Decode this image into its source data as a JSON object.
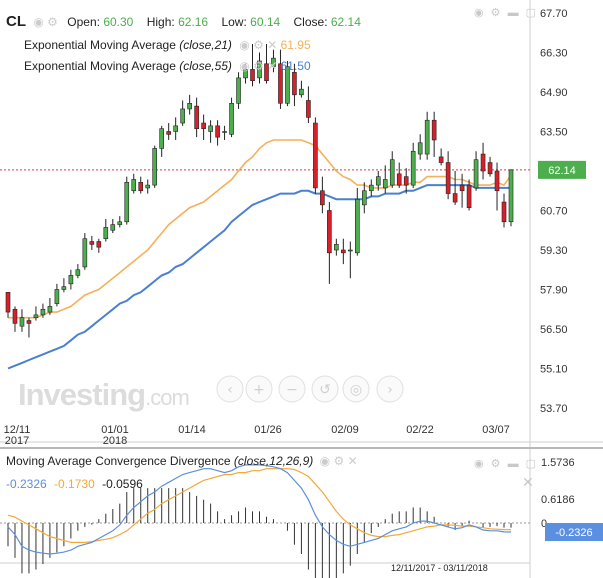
{
  "header": {
    "symbol": "CL",
    "open_label": "Open:",
    "open_value": "60.30",
    "high_label": "High:",
    "high_value": "62.16",
    "low_label": "Low:",
    "low_value": "60.14",
    "close_label": "Close:",
    "close_value": "62.14",
    "ema21_label": "Exponential Moving Average",
    "ema21_params": "(close,21)",
    "ema21_value": "61.95",
    "ema55_label": "Exponential Moving Average",
    "ema55_params": "(close,55)",
    "ema55_value": "61.50"
  },
  "macd_header": {
    "label": "Moving Average Convergence Divergence",
    "params": "(close,12,26,9)",
    "v1": "-0.2326",
    "v2": "-0.1730",
    "v3": "-0.0596",
    "current": "-0.2326"
  },
  "date_range": "12/11/2017 - 03/11/2018",
  "logo": {
    "main": "Investing",
    "suffix": ".com"
  },
  "colors": {
    "up": "#4cae4c",
    "down": "#d9202a",
    "ema21": "#f6b05a",
    "ema55": "#4a80d0",
    "macd_line": "#5b8fe0",
    "signal_line": "#f4a83a",
    "price_label": "#4cae4c",
    "current_line": "#e03b3b"
  },
  "chart_data": {
    "type": "candlestick",
    "price_axis": {
      "ticks": [
        "67.70",
        "66.30",
        "64.90",
        "63.50",
        "62.14",
        "60.70",
        "59.30",
        "57.90",
        "56.50",
        "55.10",
        "53.70"
      ],
      "current": "62.14"
    },
    "date_ticks": [
      {
        "label": "12/11",
        "sub": "2017"
      },
      {
        "label": "01/01",
        "sub": "2018"
      },
      {
        "label": "01/14",
        "sub": ""
      },
      {
        "label": "01/26",
        "sub": ""
      },
      {
        "label": "02/09",
        "sub": ""
      },
      {
        "label": "02/22",
        "sub": ""
      },
      {
        "label": "03/07",
        "sub": ""
      }
    ],
    "candles": [
      [
        57.8,
        57.1,
        57.8,
        56.9
      ],
      [
        57.2,
        56.7,
        57.3,
        56.4
      ],
      [
        56.6,
        56.9,
        57.2,
        56.4
      ],
      [
        56.8,
        56.7,
        56.9,
        56.2
      ],
      [
        56.9,
        57.0,
        57.3,
        56.8
      ],
      [
        57.0,
        57.2,
        57.4,
        56.9
      ],
      [
        57.1,
        57.3,
        57.6,
        57.0
      ],
      [
        57.4,
        57.9,
        58.1,
        57.3
      ],
      [
        57.9,
        58.0,
        58.3,
        57.8
      ],
      [
        58.1,
        58.4,
        58.6,
        57.9
      ],
      [
        58.4,
        58.6,
        58.8,
        58.3
      ],
      [
        58.7,
        59.7,
        59.9,
        58.6
      ],
      [
        59.6,
        59.5,
        59.8,
        59.3
      ],
      [
        59.6,
        59.4,
        59.7,
        59.2
      ],
      [
        59.7,
        60.1,
        60.4,
        59.6
      ],
      [
        60.0,
        60.2,
        60.4,
        59.9
      ],
      [
        60.2,
        60.3,
        60.5,
        60.1
      ],
      [
        60.3,
        61.7,
        61.9,
        60.2
      ],
      [
        61.4,
        61.8,
        62.0,
        61.3
      ],
      [
        61.7,
        61.4,
        61.9,
        61.3
      ],
      [
        61.5,
        61.6,
        61.8,
        61.3
      ],
      [
        61.6,
        62.9,
        63.0,
        61.5
      ],
      [
        62.9,
        63.6,
        63.7,
        62.6
      ],
      [
        63.5,
        63.4,
        63.8,
        63.2
      ],
      [
        63.5,
        63.7,
        64.0,
        63.2
      ],
      [
        63.8,
        64.3,
        64.6,
        63.7
      ],
      [
        64.3,
        64.5,
        64.8,
        64.1
      ],
      [
        64.4,
        63.6,
        64.7,
        63.3
      ],
      [
        63.8,
        63.6,
        64.1,
        63.2
      ],
      [
        63.5,
        63.7,
        63.9,
        63.1
      ],
      [
        63.7,
        63.3,
        63.9,
        63.0
      ],
      [
        63.5,
        63.5,
        63.7,
        63.2
      ],
      [
        63.4,
        64.5,
        64.7,
        63.3
      ],
      [
        64.5,
        65.4,
        65.6,
        64.3
      ],
      [
        65.4,
        65.7,
        65.9,
        65.2
      ],
      [
        65.7,
        65.3,
        66.6,
        65.1
      ],
      [
        65.4,
        66.0,
        66.3,
        65.2
      ],
      [
        65.9,
        65.3,
        66.6,
        65.2
      ],
      [
        65.8,
        66.1,
        66.4,
        65.6
      ],
      [
        65.9,
        64.5,
        66.4,
        64.3
      ],
      [
        64.5,
        65.8,
        66.0,
        64.4
      ],
      [
        65.6,
        64.8,
        65.9,
        64.4
      ],
      [
        64.8,
        65.0,
        65.3,
        64.7
      ],
      [
        64.6,
        64.0,
        65.1,
        63.8
      ],
      [
        63.8,
        61.5,
        64.0,
        61.3
      ],
      [
        61.4,
        60.9,
        61.9,
        60.6
      ],
      [
        60.7,
        59.2,
        61.0,
        58.1
      ],
      [
        59.3,
        59.5,
        59.7,
        59.1
      ],
      [
        59.3,
        59.2,
        59.7,
        58.8
      ],
      [
        59.3,
        59.3,
        59.6,
        58.3
      ],
      [
        59.2,
        61.1,
        61.5,
        59.1
      ],
      [
        60.9,
        61.4,
        61.7,
        60.6
      ],
      [
        61.4,
        61.6,
        61.8,
        61.2
      ],
      [
        61.6,
        61.9,
        62.1,
        61.4
      ],
      [
        61.5,
        61.8,
        62.3,
        61.3
      ],
      [
        61.6,
        62.5,
        62.8,
        61.5
      ],
      [
        62.0,
        61.6,
        62.4,
        61.5
      ],
      [
        61.9,
        61.6,
        62.2,
        61.3
      ],
      [
        61.6,
        62.8,
        63.1,
        61.5
      ],
      [
        62.7,
        63.1,
        63.4,
        62.5
      ],
      [
        62.7,
        63.9,
        64.2,
        62.5
      ],
      [
        63.9,
        63.2,
        64.2,
        62.6
      ],
      [
        62.6,
        62.4,
        62.9,
        62.3
      ],
      [
        62.4,
        61.3,
        62.8,
        61.1
      ],
      [
        61.3,
        61.0,
        62.1,
        60.9
      ],
      [
        61.6,
        61.4,
        62.0,
        60.8
      ],
      [
        61.6,
        60.8,
        61.8,
        60.7
      ],
      [
        61.5,
        62.5,
        62.8,
        61.4
      ],
      [
        62.7,
        62.1,
        63.1,
        61.8
      ],
      [
        62.4,
        62.0,
        62.6,
        61.9
      ],
      [
        62.1,
        61.4,
        62.4,
        60.7
      ],
      [
        61.0,
        60.3,
        61.3,
        60.1
      ],
      [
        60.3,
        62.14,
        62.16,
        60.14
      ]
    ],
    "ema21": [
      56.9,
      56.9,
      56.9,
      56.9,
      56.9,
      57.0,
      57.1,
      57.1,
      57.2,
      57.3,
      57.5,
      57.7,
      57.8,
      57.9,
      58.1,
      58.3,
      58.5,
      58.7,
      58.9,
      59.1,
      59.3,
      59.6,
      59.9,
      60.2,
      60.4,
      60.6,
      60.8,
      60.9,
      61.0,
      61.2,
      61.4,
      61.6,
      61.8,
      62.1,
      62.4,
      62.6,
      62.9,
      63.1,
      63.2,
      63.2,
      63.2,
      63.2,
      63.2,
      63.1,
      63.0,
      62.7,
      62.4,
      62.1,
      61.9,
      61.8,
      61.6,
      61.6,
      61.5,
      61.5,
      61.5,
      61.6,
      61.6,
      61.6,
      61.7,
      61.7,
      61.9,
      61.9,
      61.9,
      61.9,
      61.8,
      61.8,
      61.7,
      61.6,
      61.6,
      61.6,
      61.7,
      61.6,
      61.95
    ],
    "ema55": [
      55.1,
      55.2,
      55.3,
      55.4,
      55.5,
      55.6,
      55.7,
      55.8,
      55.9,
      56.1,
      56.3,
      56.4,
      56.6,
      56.8,
      57.0,
      57.2,
      57.4,
      57.5,
      57.7,
      57.8,
      58.0,
      58.2,
      58.4,
      58.5,
      58.7,
      58.8,
      59.0,
      59.2,
      59.4,
      59.6,
      59.8,
      60.0,
      60.3,
      60.5,
      60.7,
      60.9,
      61.0,
      61.1,
      61.2,
      61.3,
      61.3,
      61.3,
      61.4,
      61.4,
      61.3,
      61.3,
      61.2,
      61.1,
      61.1,
      61.1,
      61.1,
      61.1,
      61.2,
      61.2,
      61.3,
      61.3,
      61.3,
      61.4,
      61.4,
      61.5,
      61.6,
      61.6,
      61.6,
      61.6,
      61.6,
      61.6,
      61.6,
      61.5,
      61.5,
      61.5,
      61.5,
      61.5,
      61.5
    ],
    "macd": {
      "axis_ticks": [
        "1.5736",
        "0.6186",
        "0"
      ],
      "macd": [
        -0.1,
        -0.3,
        -0.6,
        -0.7,
        -0.75,
        -0.78,
        -0.8,
        -0.78,
        -0.75,
        -0.7,
        -0.6,
        -0.55,
        -0.5,
        -0.4,
        -0.3,
        -0.2,
        -0.05,
        0.2,
        0.4,
        0.55,
        0.7,
        0.8,
        0.95,
        1.05,
        1.15,
        1.25,
        1.3,
        1.35,
        1.4,
        1.4,
        1.35,
        1.3,
        1.35,
        1.45,
        1.5,
        1.5,
        1.5,
        1.48,
        1.45,
        1.4,
        1.3,
        1.1,
        0.9,
        0.6,
        0.2,
        -0.1,
        -0.3,
        -0.45,
        -0.55,
        -0.6,
        -0.55,
        -0.5,
        -0.45,
        -0.4,
        -0.3,
        -0.2,
        -0.15,
        -0.1,
        0.0,
        0.05,
        0.05,
        0.0,
        -0.05,
        -0.1,
        -0.15,
        -0.12,
        -0.05,
        -0.1,
        -0.18,
        -0.2,
        -0.2,
        -0.23,
        -0.2326
      ],
      "signal": [
        0.2,
        0.15,
        0.05,
        -0.05,
        -0.15,
        -0.25,
        -0.35,
        -0.4,
        -0.45,
        -0.5,
        -0.5,
        -0.5,
        -0.48,
        -0.45,
        -0.42,
        -0.38,
        -0.3,
        -0.2,
        -0.05,
        0.1,
        0.25,
        0.35,
        0.5,
        0.6,
        0.7,
        0.8,
        0.9,
        1.0,
        1.1,
        1.15,
        1.2,
        1.25,
        1.25,
        1.3,
        1.3,
        1.35,
        1.35,
        1.4,
        1.4,
        1.4,
        1.4,
        1.38,
        1.3,
        1.2,
        1.0,
        0.8,
        0.55,
        0.3,
        0.1,
        -0.05,
        -0.15,
        -0.25,
        -0.32,
        -0.35,
        -0.35,
        -0.32,
        -0.3,
        -0.25,
        -0.2,
        -0.15,
        -0.1,
        -0.08,
        -0.05,
        -0.05,
        -0.06,
        -0.08,
        -0.08,
        -0.1,
        -0.12,
        -0.15,
        -0.16,
        -0.17,
        -0.173
      ]
    }
  }
}
